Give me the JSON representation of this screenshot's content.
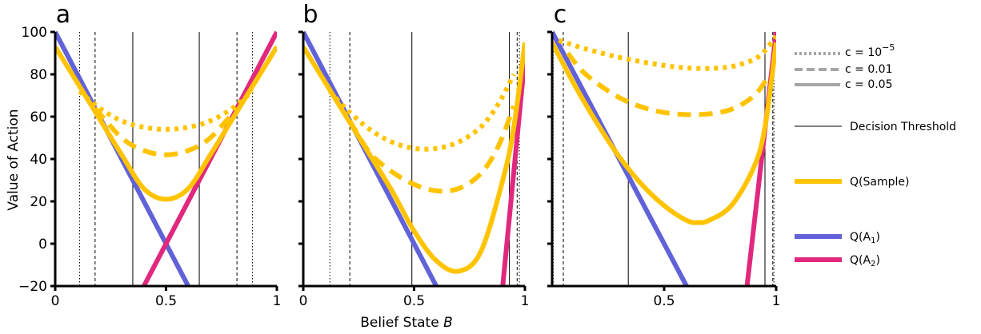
{
  "figure": {
    "ylabel": "Value of Action",
    "xlabel": "Belief State",
    "xlabel_italic": "B"
  },
  "colors": {
    "sample": "#FFC300",
    "a1": "#6262D8",
    "a2": "#E0297E",
    "legend_gray": "#A6A6A6",
    "threshold": "#000000"
  },
  "legend": {
    "c_small_prefix": "c = 10",
    "c_small_exp": "−5",
    "c_mid": "c = 0.01",
    "c_large": "c = 0.05",
    "threshold": "Decision Threshold",
    "sample": "Q(Sample)",
    "a1_base": "Q(A",
    "a1_sub": "1",
    "a2_base": "Q(A",
    "a2_sub": "2",
    "close_paren": ")"
  },
  "chart_data": [
    {
      "panel": "a",
      "type": "line",
      "xlim": [
        0,
        1
      ],
      "ylim": [
        -20,
        100
      ],
      "xticks": [
        "0",
        "0.5",
        "1"
      ],
      "yticks": [
        "100",
        "80",
        "60",
        "40",
        "20",
        "0",
        "−20"
      ],
      "series": [
        {
          "name": "Q(A1)",
          "style": "solid",
          "x": [
            0,
            0.6
          ],
          "y": [
            100,
            -20
          ]
        },
        {
          "name": "Q(A2)",
          "style": "solid",
          "x": [
            0.4,
            1.0
          ],
          "y": [
            -20,
            100
          ]
        },
        {
          "name": "Q(Sample)",
          "style": "solid",
          "x": [
            0,
            0.1,
            0.2,
            0.3,
            0.4,
            0.5,
            0.6,
            0.7,
            0.8,
            0.9,
            1.0
          ],
          "y": [
            93,
            76,
            59,
            42,
            26,
            21,
            26,
            42,
            59,
            76,
            93
          ]
        },
        {
          "name": "Q(Sample)",
          "style": "dashed",
          "x": [
            0.18,
            0.3,
            0.4,
            0.5,
            0.6,
            0.7,
            0.82
          ],
          "y": [
            64,
            50,
            44,
            42,
            44,
            50,
            64
          ]
        },
        {
          "name": "Q(Sample)",
          "style": "dotted",
          "x": [
            0.11,
            0.2,
            0.3,
            0.4,
            0.5,
            0.6,
            0.7,
            0.8,
            0.89
          ],
          "y": [
            72,
            64,
            58,
            55,
            54,
            55,
            58,
            64,
            72
          ]
        }
      ],
      "thresholds": [
        {
          "style": "dotted",
          "x": [
            0.11,
            0.89
          ]
        },
        {
          "style": "dashed",
          "x": [
            0.18,
            0.82
          ]
        },
        {
          "style": "solid",
          "x": [
            0.35,
            0.65
          ]
        }
      ]
    },
    {
      "panel": "b",
      "type": "line",
      "xlim": [
        0,
        1
      ],
      "ylim": [
        -20,
        100
      ],
      "xticks": [
        "0",
        "0.5",
        "1"
      ],
      "yticks": [],
      "series": [
        {
          "name": "Q(A1)",
          "style": "solid",
          "x": [
            0,
            0.6
          ],
          "y": [
            100,
            -20
          ]
        },
        {
          "name": "Q(A2)",
          "style": "solid",
          "x": [
            0.9,
            1.0
          ],
          "y": [
            -20,
            88
          ]
        },
        {
          "name": "Q(Sample)",
          "style": "solid",
          "x": [
            0,
            0.1,
            0.2,
            0.3,
            0.4,
            0.5,
            0.6,
            0.7,
            0.8,
            0.9,
            0.95,
            1.0
          ],
          "y": [
            93,
            76,
            59,
            42,
            25,
            6,
            -8,
            -13,
            -4,
            30,
            55,
            95
          ]
        },
        {
          "name": "Q(Sample)",
          "style": "dashed",
          "x": [
            0.21,
            0.3,
            0.4,
            0.5,
            0.6,
            0.7,
            0.8,
            0.88,
            0.95
          ],
          "y": [
            58,
            43,
            34,
            28,
            25,
            26,
            33,
            46,
            65
          ]
        },
        {
          "name": "Q(Sample)",
          "style": "dotted",
          "x": [
            0.12,
            0.2,
            0.3,
            0.4,
            0.5,
            0.6,
            0.7,
            0.8,
            0.88,
            0.95
          ],
          "y": [
            72,
            63,
            54,
            48,
            45,
            45,
            48,
            55,
            66,
            80
          ]
        }
      ],
      "thresholds": [
        {
          "style": "dotted",
          "x": [
            0.12,
            0.975
          ]
        },
        {
          "style": "dashed",
          "x": [
            0.21,
            0.965
          ]
        },
        {
          "style": "solid",
          "x": [
            0.49,
            0.93
          ]
        }
      ]
    },
    {
      "panel": "c",
      "type": "line",
      "xlim": [
        0,
        1
      ],
      "ylim": [
        -20,
        100
      ],
      "xticks": [
        "0.5",
        "1"
      ],
      "yticks": [],
      "series": [
        {
          "name": "Q(A1)",
          "style": "solid",
          "x": [
            0,
            0.6
          ],
          "y": [
            100,
            -20
          ]
        },
        {
          "name": "Q(A2)",
          "style": "solid",
          "x": [
            0.87,
            1.0
          ],
          "y": [
            -20,
            100
          ]
        },
        {
          "name": "Q(Sample)",
          "style": "solid",
          "x": [
            0,
            0.1,
            0.2,
            0.3,
            0.4,
            0.5,
            0.6,
            0.65,
            0.7,
            0.8,
            0.9,
            0.95,
            1.0
          ],
          "y": [
            95,
            75,
            57,
            41,
            28,
            18,
            11,
            10,
            11,
            18,
            36,
            55,
            95
          ]
        },
        {
          "name": "Q(Sample)",
          "style": "dashed",
          "x": [
            0.07,
            0.15,
            0.3,
            0.45,
            0.6,
            0.75,
            0.85,
            0.92,
            0.97
          ],
          "y": [
            90,
            80,
            69,
            63,
            61,
            62,
            66,
            72,
            80
          ]
        },
        {
          "name": "Q(Sample)",
          "style": "dotted",
          "x": [
            0.03,
            0.15,
            0.3,
            0.45,
            0.6,
            0.75,
            0.85,
            0.93,
            1.0
          ],
          "y": [
            96,
            92,
            88,
            85,
            83,
            83,
            85,
            89,
            98
          ]
        }
      ],
      "thresholds": [
        {
          "style": "dotted",
          "x": [
            0.005,
            0.99
          ]
        },
        {
          "style": "dashed",
          "x": [
            0.05,
            0.985
          ]
        },
        {
          "style": "solid",
          "x": [
            0.34,
            0.95
          ]
        }
      ]
    }
  ]
}
